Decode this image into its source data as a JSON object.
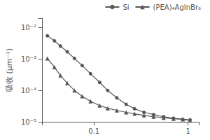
{
  "chart_data": {
    "type": "line",
    "ylabel": "吸收 (μm⁻¹)",
    "log": true,
    "grid": false,
    "legend": "upper right",
    "xlim": [
      0.028,
      1.3
    ],
    "ylim": [
      1e-05,
      0.02
    ],
    "xticks": [
      0.1,
      1
    ],
    "yticks": [
      {
        "value": 1e-05,
        "label": "10⁻⁵"
      },
      {
        "value": 0.0001,
        "label": "10⁻⁴"
      },
      {
        "value": 0.001,
        "label": "10⁻³"
      },
      {
        "value": 0.01,
        "label": "10⁻²"
      }
    ],
    "x": [
      0.032,
      0.038,
      0.044,
      0.052,
      0.062,
      0.075,
      0.092,
      0.115,
      0.14,
      0.175,
      0.22,
      0.27,
      0.34,
      0.43,
      0.55,
      0.7,
      0.88,
      1.05
    ],
    "series": [
      {
        "name": "Si",
        "color": "#555555",
        "marker": "circle",
        "values": [
          0.0055,
          0.0038,
          0.0026,
          0.0017,
          0.00105,
          0.00062,
          0.00034,
          0.00018,
          0.0001,
          5.8e-05,
          3.6e-05,
          2.6e-05,
          2e-05,
          1.7e-05,
          1.45e-05,
          1.3e-05,
          1.2e-05,
          1.15e-05
        ]
      },
      {
        "name": "(PEA)₄AgInBr₆",
        "color": "#555555",
        "marker": "triangle",
        "values": [
          0.00105,
          0.00055,
          0.0003,
          0.00017,
          0.0001,
          6.5e-05,
          4.5e-05,
          3.3e-05,
          2.7e-05,
          2.3e-05,
          2e-05,
          1.8e-05,
          1.6e-05,
          1.45e-05,
          1.35e-05,
          1.25e-05,
          1.2e-05,
          1.1e-05
        ]
      }
    ]
  }
}
